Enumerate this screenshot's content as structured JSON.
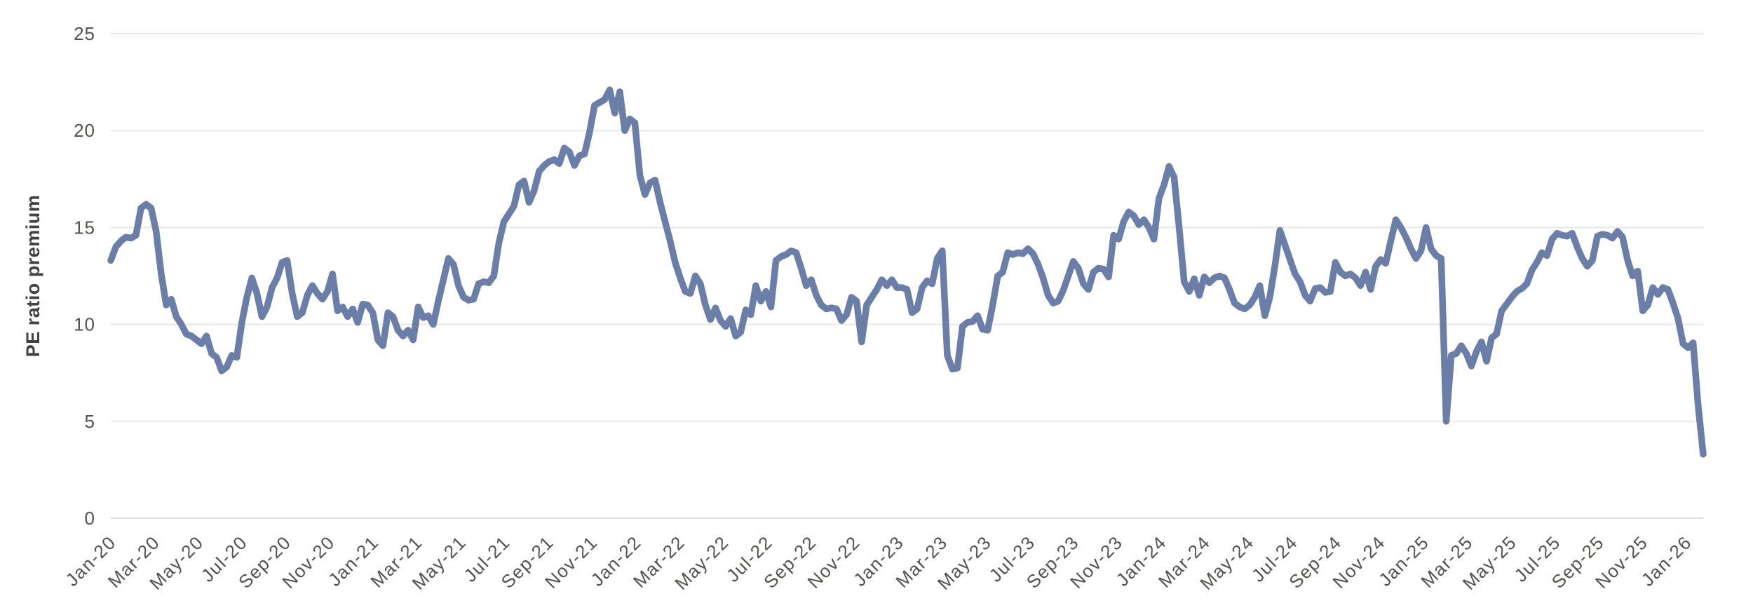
{
  "chart_data": {
    "type": "line",
    "title": "",
    "ylabel": "PE ratio premium",
    "xlabel": "",
    "ylim": [
      0,
      25
    ],
    "yticks": [
      0,
      5,
      10,
      15,
      20,
      25
    ],
    "grid": "horizontal gridlines at each y tick",
    "legend": "none",
    "x_tick_labels": [
      "Jan-20",
      "Mar-20",
      "May-20",
      "Jul-20",
      "Sep-20",
      "Nov-20",
      "Jan-21",
      "Mar-21",
      "May-21",
      "Jul-21",
      "Sep-21",
      "Nov-21",
      "Jan-22",
      "Mar-22",
      "May-22",
      "Jul-22",
      "Sep-22",
      "Nov-22",
      "Jan-23",
      "Mar-23",
      "May-23",
      "Jul-23",
      "Sep-23",
      "Nov-23",
      "Jan-24",
      "Mar-24",
      "May-24",
      "Jul-24",
      "Sep-24",
      "Nov-24",
      "Jan-25",
      "Mar-25",
      "May-25",
      "Jul-25",
      "Sep-25",
      "Nov-25",
      "Jan-26"
    ],
    "x_unit": "weekly observations from Jan-2020 through Feb-2026, plotted left to right",
    "series": [
      {
        "name": "PE ratio premium",
        "color": "#6b7ea7",
        "values": [
          13.3,
          14.0,
          14.3,
          14.5,
          14.45,
          14.6,
          16.0,
          16.2,
          16.0,
          14.8,
          12.6,
          11.0,
          11.3,
          10.4,
          10.0,
          9.5,
          9.4,
          9.2,
          9.0,
          9.4,
          8.5,
          8.3,
          7.6,
          7.8,
          8.4,
          8.3,
          10.1,
          11.4,
          12.4,
          11.6,
          10.4,
          10.9,
          11.9,
          12.4,
          13.2,
          13.3,
          11.6,
          10.4,
          10.6,
          11.5,
          12.0,
          11.6,
          11.3,
          11.7,
          12.6,
          10.7,
          10.9,
          10.4,
          10.8,
          10.1,
          11.05,
          11.0,
          10.6,
          9.2,
          8.9,
          10.6,
          10.4,
          9.7,
          9.4,
          9.7,
          9.2,
          10.9,
          10.35,
          10.45,
          10.0,
          11.2,
          12.3,
          13.4,
          13.1,
          12.0,
          11.4,
          11.25,
          11.3,
          12.1,
          12.2,
          12.15,
          12.5,
          14.2,
          15.3,
          15.7,
          16.1,
          17.2,
          17.4,
          16.3,
          16.9,
          17.9,
          18.2,
          18.4,
          18.5,
          18.3,
          19.1,
          18.9,
          18.2,
          18.7,
          18.8,
          19.9,
          21.3,
          21.45,
          21.6,
          22.1,
          20.9,
          22.0,
          20.0,
          20.6,
          20.4,
          17.7,
          16.7,
          17.3,
          17.45,
          16.3,
          15.3,
          14.3,
          13.2,
          12.4,
          11.7,
          11.6,
          12.5,
          12.1,
          11.0,
          10.25,
          10.85,
          10.2,
          9.9,
          10.3,
          9.4,
          9.6,
          10.75,
          10.5,
          12.0,
          11.2,
          11.7,
          10.9,
          13.3,
          13.5,
          13.6,
          13.8,
          13.7,
          12.9,
          12.0,
          12.3,
          11.5,
          11.0,
          10.8,
          10.85,
          10.8,
          10.2,
          10.5,
          11.4,
          11.2,
          9.1,
          11.0,
          11.4,
          11.8,
          12.3,
          12.0,
          12.3,
          11.9,
          11.9,
          11.8,
          10.6,
          10.8,
          11.9,
          12.25,
          12.1,
          13.4,
          13.8,
          8.4,
          7.7,
          7.75,
          9.9,
          10.1,
          10.15,
          10.45,
          9.75,
          9.7,
          11.0,
          12.5,
          12.7,
          13.7,
          13.6,
          13.7,
          13.65,
          13.9,
          13.65,
          13.1,
          12.4,
          11.5,
          11.1,
          11.2,
          11.75,
          12.5,
          13.25,
          12.9,
          12.1,
          11.8,
          12.7,
          12.9,
          12.85,
          12.45,
          14.6,
          14.4,
          15.3,
          15.8,
          15.6,
          15.15,
          15.4,
          15.0,
          14.4,
          16.5,
          17.2,
          18.15,
          17.6,
          15.0,
          12.2,
          11.7,
          12.35,
          11.5,
          12.45,
          12.15,
          12.4,
          12.5,
          12.4,
          11.8,
          11.1,
          10.9,
          10.8,
          11.0,
          11.4,
          12.0,
          10.45,
          11.4,
          13.0,
          14.85,
          14.1,
          13.35,
          12.6,
          12.2,
          11.5,
          11.2,
          11.85,
          11.9,
          11.65,
          11.7,
          13.2,
          12.7,
          12.5,
          12.6,
          12.4,
          12.0,
          12.7,
          11.8,
          13.0,
          13.35,
          13.15,
          14.3,
          15.4,
          15.0,
          14.5,
          13.9,
          13.4,
          13.8,
          15.0,
          13.9,
          13.55,
          13.4,
          5.0,
          8.4,
          8.5,
          8.9,
          8.5,
          7.85,
          8.6,
          9.1,
          8.1,
          9.3,
          9.5,
          10.7,
          11.05,
          11.4,
          11.7,
          11.85,
          12.1,
          12.8,
          13.2,
          13.7,
          13.55,
          14.4,
          14.7,
          14.6,
          14.55,
          14.7,
          14.0,
          13.4,
          13.0,
          13.3,
          14.55,
          14.65,
          14.6,
          14.45,
          14.8,
          14.5,
          13.3,
          12.5,
          12.75,
          10.7,
          11.0,
          11.9,
          11.55,
          11.9,
          11.8,
          11.1,
          10.3,
          9.0,
          8.8,
          9.05,
          5.8,
          3.3
        ]
      }
    ]
  },
  "colors": {
    "background": "#ffffff",
    "line": "#6b7ea7",
    "gridline": "#e9e6e4",
    "baseline": "#dfdcd9",
    "tick_label": "#56514e",
    "axis_title": "#454140"
  }
}
